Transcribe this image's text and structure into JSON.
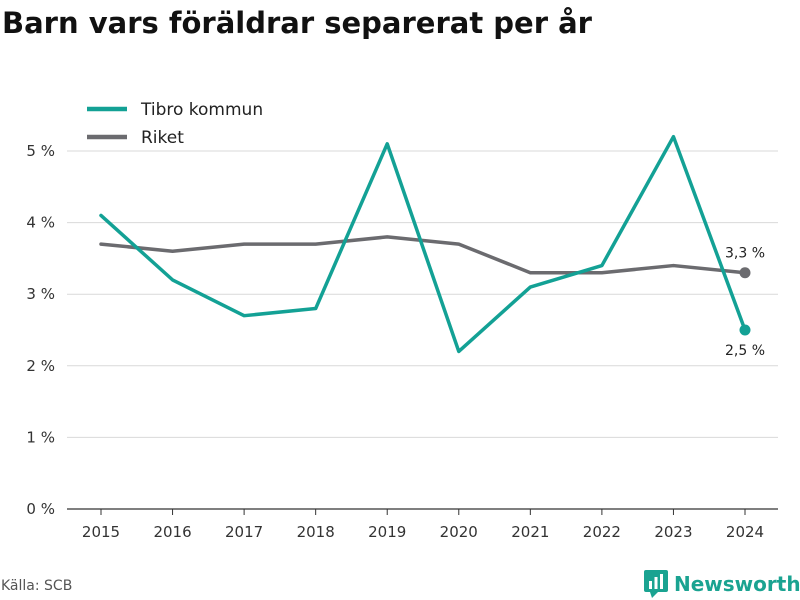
{
  "chart_data": {
    "type": "line",
    "title": "Barn vars föräldrar separerat per år",
    "x": [
      "2015",
      "2016",
      "2017",
      "2018",
      "2019",
      "2020",
      "2021",
      "2022",
      "2023",
      "2024"
    ],
    "series": [
      {
        "name": "Tibro kommun",
        "color": "#13a195",
        "values": [
          4.1,
          3.2,
          2.7,
          2.8,
          5.1,
          2.2,
          3.1,
          3.4,
          5.2,
          2.5
        ],
        "end_label": "2,5 %"
      },
      {
        "name": "Riket",
        "color": "#6b6b6f",
        "values": [
          3.7,
          3.6,
          3.7,
          3.7,
          3.8,
          3.7,
          3.3,
          3.3,
          3.4,
          3.3
        ],
        "end_label": "3,3 %"
      }
    ],
    "y_ticks": [
      0,
      1,
      2,
      3,
      4,
      5
    ],
    "y_tick_labels": [
      "0 %",
      "1 %",
      "2 %",
      "3 %",
      "4 %",
      "5 %"
    ],
    "ylim": [
      0,
      5.5
    ],
    "grid": true,
    "legend": "top-left"
  },
  "source": "Källa: SCB",
  "brand": {
    "name": "Newsworthy",
    "color": "#1aa391"
  }
}
